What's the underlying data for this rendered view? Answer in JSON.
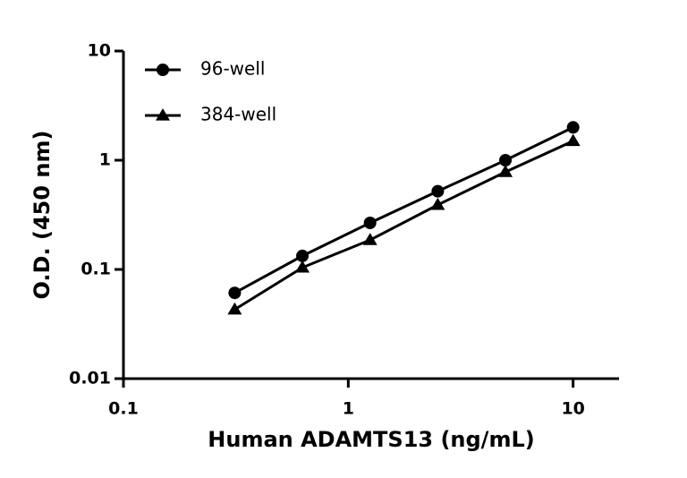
{
  "chart_data": {
    "type": "line",
    "x_label": "Human ADAMTS13 (ng/mL)",
    "y_label": "O.D. (450 nm)",
    "x": [
      0.3125,
      0.625,
      1.25,
      2.5,
      5,
      10
    ],
    "series": [
      {
        "name": "96-well",
        "color": "#000000",
        "marker": "circle",
        "values": [
          0.061,
          0.133,
          0.267,
          0.52,
          1.0,
          2.0
        ]
      },
      {
        "name": "384-well",
        "color": "#000000",
        "marker": "triangle",
        "values": [
          0.043,
          0.104,
          0.186,
          0.39,
          0.78,
          1.5
        ]
      }
    ],
    "xlim": [
      0.1,
      16
    ],
    "ylim": [
      0.01,
      10
    ],
    "xticks": [
      0.1,
      1,
      10
    ],
    "yticks": [
      0.01,
      0.1,
      1,
      10
    ],
    "xscale": "log",
    "yscale": "log",
    "grid": false,
    "legend": "upper left"
  }
}
